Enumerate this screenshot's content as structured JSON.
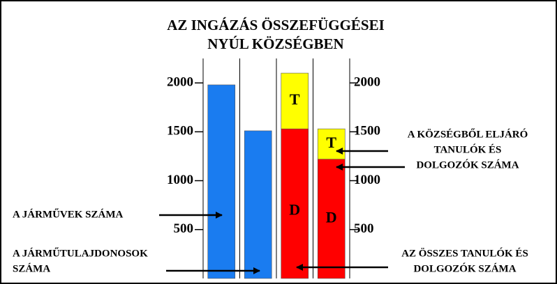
{
  "chart_data": {
    "type": "stacked_bar",
    "title": [
      "AZ INGÁZÁS ÖSSZEFÜGGÉSEI",
      "NYÚL KÖZSÉGBEN"
    ],
    "categories": [
      null,
      null,
      null,
      null
    ],
    "series": [
      {
        "color": "#1a7cf0",
        "values": [
          1980,
          1510,
          null,
          null
        ]
      },
      {
        "color": "#ff0000",
        "label": "D",
        "values": [
          null,
          null,
          1530,
          1220
        ]
      },
      {
        "color": "#ffff00",
        "label": "T",
        "values": [
          null,
          null,
          570,
          310
        ]
      }
    ],
    "ylim": [
      0,
      2250
    ],
    "yticks": [
      500,
      1000,
      1500,
      2000
    ],
    "y2ticks": [
      500,
      1000,
      1500,
      2000
    ],
    "grid": true,
    "annotations": [
      {
        "lines": [
          "A JÁRMŰVEK SZÁMA"
        ]
      },
      {
        "lines": [
          "A JÁRMŰTULAJDONOSOK",
          "SZÁMA"
        ]
      },
      {
        "lines": [
          "A KÖZSÉGBŐL  ELJÁRÓ",
          "TANULÓK ÉS",
          "DOLGOZÓK SZÁMA"
        ]
      },
      {
        "lines": [
          "AZ ÖSSZES TANULÓK ÉS",
          "DOLGOZÓK  SZÁMA"
        ]
      }
    ]
  }
}
